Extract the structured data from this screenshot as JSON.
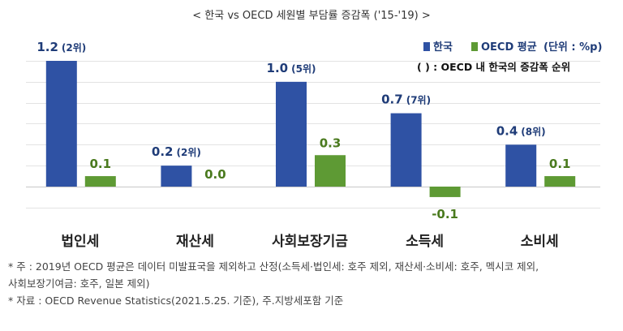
{
  "chart_data": {
    "type": "bar",
    "title": "< 한국 vs OECD 세원별 부담률 증감폭 ('15-'19) >",
    "categories": [
      "법인세",
      "재산세",
      "사회보장기금",
      "소득세",
      "소비세"
    ],
    "series": [
      {
        "name": "한국",
        "values": [
          1.2,
          0.2,
          1.0,
          0.7,
          0.4
        ],
        "value_labels": [
          "1.2",
          "0.2",
          "1.0",
          "0.7",
          "0.4"
        ],
        "ranks": [
          "(2위)",
          "(2위)",
          "(5위)",
          "(7위)",
          "(8위)"
        ],
        "color": "#2f52a4"
      },
      {
        "name": "OECD 평균",
        "values": [
          0.1,
          0.0,
          0.3,
          -0.1,
          0.1
        ],
        "value_labels": [
          "0.1",
          "0.0",
          "0.3",
          "-0.1",
          "0.1"
        ],
        "color": "#5e9a34"
      }
    ],
    "unit_label": "(단위 : %p)",
    "legend_note": "( ) : OECD 내 한국의 증감폭 순위",
    "legend_position": "top-right",
    "ylim": [
      -0.2,
      1.2
    ],
    "grid": true
  },
  "notes": {
    "line1": "* 주 : 2019년 OECD 평균은 데이터 미발표국을 제외하고 산정(소득세·법인세: 호주 제외, 재산세·소비세: 호주, 멕시코 제외,",
    "line2": "사회보장기여금: 호주, 일본 제외)",
    "line3": "* 자료 : OECD Revenue Statistics(2021.5.25. 기준), 주.지방세포함 기준"
  }
}
